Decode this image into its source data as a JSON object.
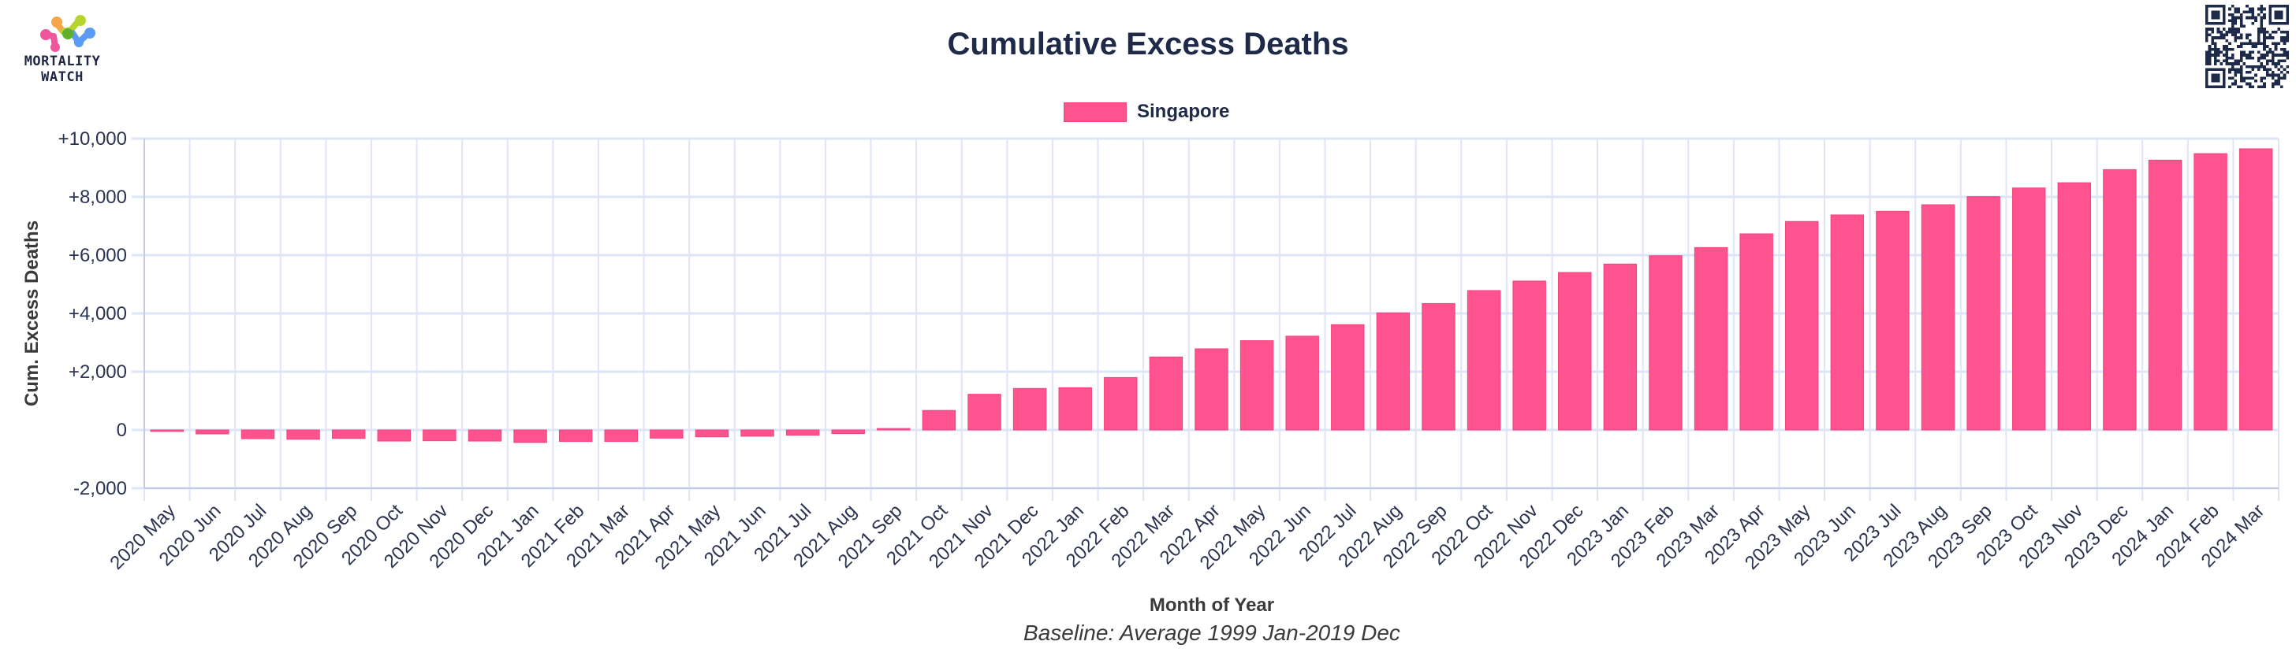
{
  "brand": {
    "logo_line1": "MORTALITY",
    "logo_line2": "WATCH",
    "logo_colors": [
      "#f0569b",
      "#f6a54a",
      "#b5d42e",
      "#5eb02e",
      "#5b9bf5"
    ]
  },
  "qr_code": {
    "color": "#1e2a4a"
  },
  "chart_data": {
    "type": "bar",
    "title": "Cumulative Excess Deaths",
    "xlabel": "Month of Year",
    "ylabel": "Cum. Excess Deaths",
    "subtitle": "Baseline: Average 1999 Jan-2019 Dec",
    "ylim": [
      -2000,
      10000
    ],
    "yticks": [
      -2000,
      0,
      2000,
      4000,
      6000,
      8000,
      10000
    ],
    "ytick_labels": [
      "-2,000",
      "0",
      "+2,000",
      "+4,000",
      "+6,000",
      "+8,000",
      "+10,000"
    ],
    "grid": true,
    "legend_position": "top-center",
    "bar_color": "#ff5390",
    "grid_color": "#dde5f7",
    "categories": [
      "2020 May",
      "2020 Jun",
      "2020 Jul",
      "2020 Aug",
      "2020 Sep",
      "2020 Oct",
      "2020 Nov",
      "2020 Dec",
      "2021 Jan",
      "2021 Feb",
      "2021 Mar",
      "2021 Apr",
      "2021 May",
      "2021 Jun",
      "2021 Jul",
      "2021 Aug",
      "2021 Sep",
      "2021 Oct",
      "2021 Nov",
      "2021 Dec",
      "2022 Jan",
      "2022 Feb",
      "2022 Mar",
      "2022 Apr",
      "2022 May",
      "2022 Jun",
      "2022 Jul",
      "2022 Aug",
      "2022 Sep",
      "2022 Oct",
      "2022 Nov",
      "2022 Dec",
      "2023 Jan",
      "2023 Feb",
      "2023 Mar",
      "2023 Apr",
      "2023 May",
      "2023 Jun",
      "2023 Jul",
      "2023 Aug",
      "2023 Sep",
      "2023 Oct",
      "2023 Nov",
      "2023 Dec",
      "2024 Jan",
      "2024 Feb",
      "2024 Mar"
    ],
    "series": [
      {
        "name": "Singapore",
        "values": [
          -50,
          -135,
          -300,
          -320,
          -290,
          -380,
          -370,
          -380,
          -430,
          -395,
          -395,
          -280,
          -235,
          -215,
          -180,
          -125,
          50,
          670,
          1225,
          1425,
          1450,
          1800,
          2505,
          2785,
          3065,
          3220,
          3615,
          4020,
          4340,
          4785,
          5110,
          5405,
          5695,
          5980,
          6260,
          6730,
          7155,
          7380,
          7505,
          7730,
          8010,
          8305,
          8485,
          8935,
          9260,
          9485,
          9650
        ]
      }
    ]
  }
}
